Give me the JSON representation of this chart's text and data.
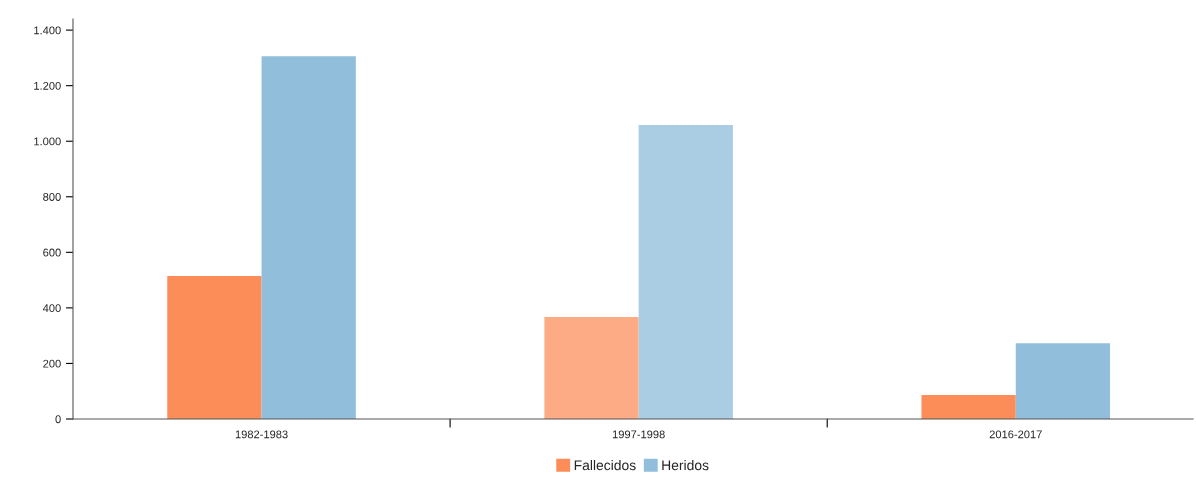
{
  "chart_data": {
    "type": "bar",
    "categories": [
      "1982-1983",
      "1997-1998",
      "2016-2017"
    ],
    "series": [
      {
        "name": "Fallecidos",
        "color": "#fc8d59",
        "colors": [
          "#fc8d59",
          "#fcab84",
          "#fc8d59"
        ],
        "values": [
          515,
          367,
          86
        ]
      },
      {
        "name": "Heridos",
        "color": "#91bfdb",
        "colors": [
          "#91bfdb",
          "#abcde3",
          "#91bfdb"
        ],
        "values": [
          1306,
          1058,
          273
        ]
      }
    ],
    "ylim": [
      0,
      1440
    ],
    "yticks": [
      0,
      200,
      400,
      600,
      800,
      {
        "value": 1000,
        "label": "1.000"
      },
      {
        "value": 1200,
        "label": "1.200"
      },
      {
        "value": 1400,
        "label": "1.400"
      }
    ],
    "grid": false,
    "legend": "bottom"
  }
}
